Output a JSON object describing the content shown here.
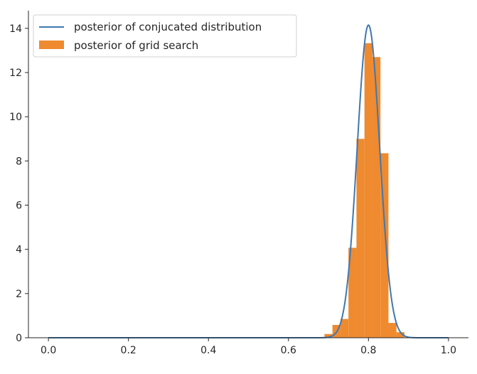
{
  "chart_data": {
    "type": "histogram+line",
    "xlim": [
      -0.05,
      1.05
    ],
    "ylim": [
      0,
      14.8
    ],
    "x_ticks": [
      {
        "value": 0.0,
        "label": "0.0"
      },
      {
        "value": 0.2,
        "label": "0.2"
      },
      {
        "value": 0.4,
        "label": "0.4"
      },
      {
        "value": 0.6,
        "label": "0.6"
      },
      {
        "value": 0.8,
        "label": "0.8"
      },
      {
        "value": 1.0,
        "label": "1.0"
      }
    ],
    "y_ticks": [
      {
        "value": 0,
        "label": "0"
      },
      {
        "value": 2,
        "label": "2"
      },
      {
        "value": 4,
        "label": "4"
      },
      {
        "value": 6,
        "label": "6"
      },
      {
        "value": 8,
        "label": "8"
      },
      {
        "value": 10,
        "label": "10"
      },
      {
        "value": 12,
        "label": "12"
      },
      {
        "value": 14,
        "label": "14"
      }
    ],
    "grid": false,
    "legend_position": "top-left",
    "series": [
      {
        "name": "posterior of conjucated distribution",
        "kind": "line",
        "color": "#3f78b1",
        "mean": 0.8,
        "std": 0.0282,
        "x_range": [
          0.0,
          1.0
        ]
      },
      {
        "name": "posterior of grid search",
        "kind": "histogram",
        "color": "#ef8a2f",
        "bin_edges": [
          0.69,
          0.71,
          0.73,
          0.75,
          0.77,
          0.79,
          0.81,
          0.83,
          0.85,
          0.87,
          0.89
        ],
        "values": [
          0.17,
          0.58,
          0.85,
          4.07,
          9.0,
          13.33,
          12.7,
          8.35,
          0.67,
          0.25
        ]
      }
    ]
  }
}
